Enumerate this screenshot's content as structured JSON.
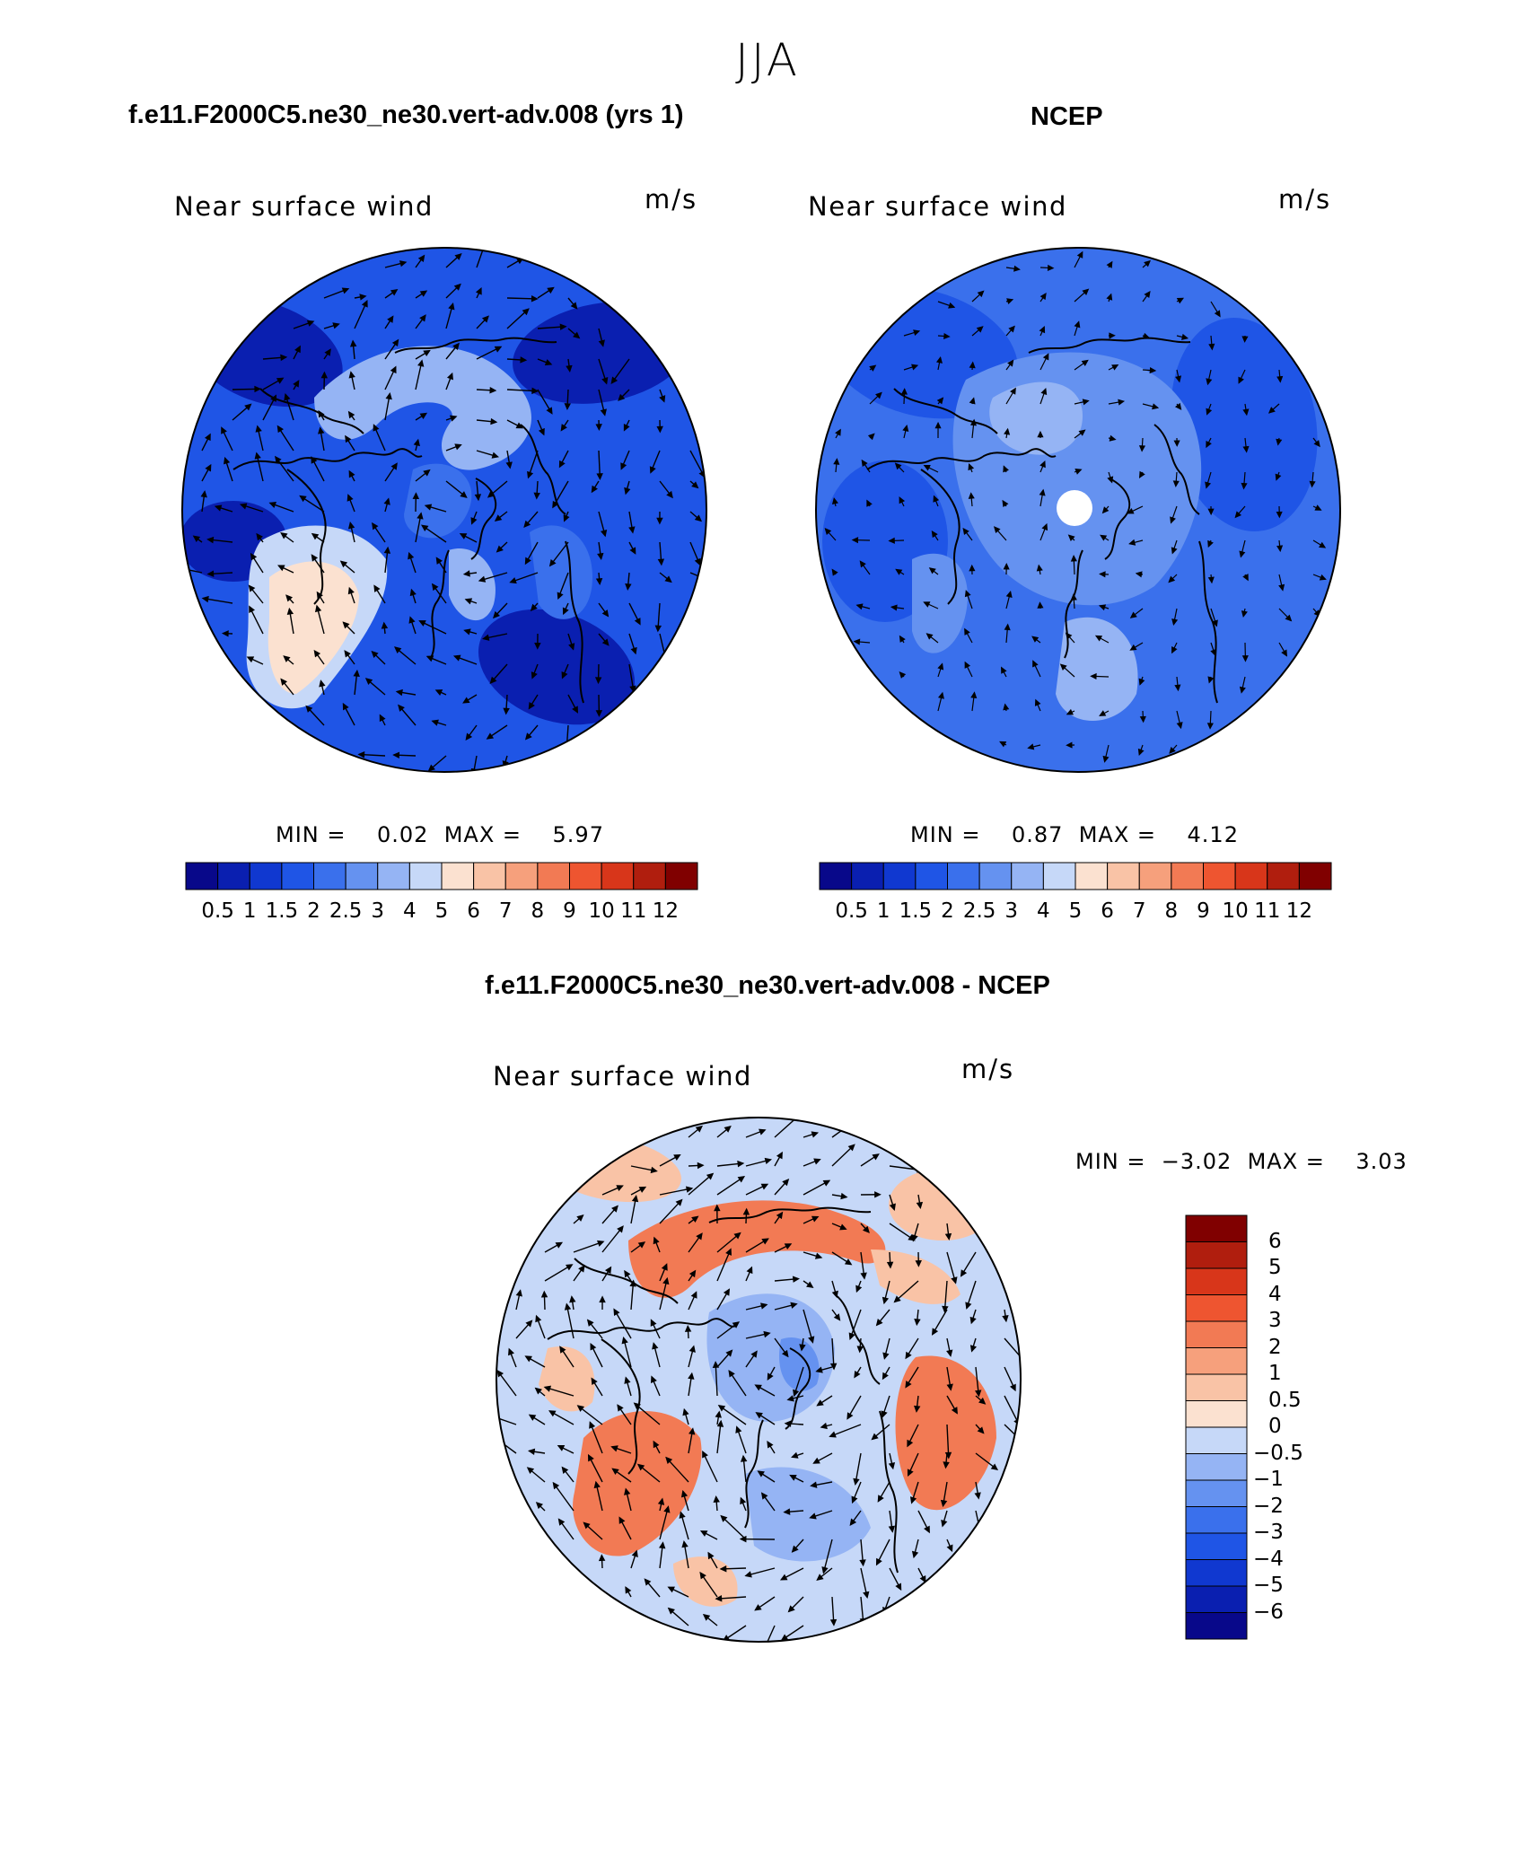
{
  "title": "JJA",
  "panels": {
    "model": {
      "title": "f.e11.F2000C5.ne30_ne30.vert-adv.008 (yrs 1)",
      "field_label": "Near surface wind",
      "units": "m/s",
      "min_label": "MIN =",
      "min_value": "0.02",
      "max_label": "MAX =",
      "max_value": "5.97"
    },
    "obs": {
      "title": "NCEP",
      "field_label": "Near surface wind",
      "units": "m/s",
      "min_label": "MIN =",
      "min_value": "0.87",
      "max_label": "MAX =",
      "max_value": "4.12"
    },
    "diff": {
      "title": "f.e11.F2000C5.ne30_ne30.vert-adv.008 - NCEP",
      "field_label": "Near surface wind",
      "units": "m/s",
      "min_label": "MIN =",
      "min_value": "−3.02",
      "max_label": "MAX =",
      "max_value": "3.03"
    }
  },
  "colorbar_abs": {
    "colors": [
      "#08088a",
      "#0a1fb0",
      "#1038d0",
      "#1f55e6",
      "#3a70ec",
      "#6592f0",
      "#95b4f4",
      "#c6d8f8",
      "#fbe1d0",
      "#f9c3a6",
      "#f6a07c",
      "#f27a54",
      "#ee5530",
      "#d8361a",
      "#b01e0e",
      "#800000"
    ],
    "ticks": [
      "0.5",
      "1",
      "1.5",
      "2",
      "2.5",
      "3",
      "4",
      "5",
      "6",
      "7",
      "8",
      "9",
      "10",
      "11",
      "12"
    ]
  },
  "colorbar_diff": {
    "colors": [
      "#800000",
      "#b01e0e",
      "#d8361a",
      "#ee5530",
      "#f27a54",
      "#f6a07c",
      "#f9c3a6",
      "#fbe1d0",
      "#c6d8f8",
      "#95b4f4",
      "#6592f0",
      "#3a70ec",
      "#1f55e6",
      "#1038d0",
      "#0a1fb0",
      "#08088a"
    ],
    "ticks": [
      "6",
      "5",
      "4",
      "3",
      "2",
      "1",
      "0.5",
      "0",
      "−0.5",
      "−1",
      "−2",
      "−3",
      "−4",
      "−5",
      "−6"
    ]
  },
  "map_colors": {
    "model": {
      "base": "#1f55e6",
      "dark": "#0a1fb0",
      "mid": "#3a70ec",
      "light": "#95b4f4",
      "pale": "#c6d8f8",
      "warm": "#fbe1d0"
    },
    "obs": {
      "base": "#3a70ec",
      "dark": "#1f55e6",
      "mid": "#6592f0",
      "light": "#95b4f4",
      "hole": "#ffffff"
    },
    "diff": {
      "base": "#c6d8f8",
      "blue": "#95b4f4",
      "deep": "#6592f0",
      "warm": "#f9c3a6",
      "hot": "#f27a54"
    }
  }
}
